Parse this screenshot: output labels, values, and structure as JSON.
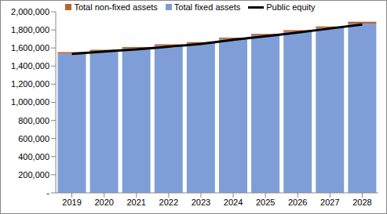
{
  "chart_data": {
    "type": "bar",
    "stacked": true,
    "legend": "top",
    "grid": false,
    "categories": [
      "2019",
      "2020",
      "2021",
      "2022",
      "2023",
      "2024",
      "2025",
      "2026",
      "2027",
      "2028"
    ],
    "series": [
      {
        "name": "Total non-fixed assets",
        "type": "bar",
        "color": "#c0622b",
        "values": [
          15000,
          15000,
          15000,
          15000,
          15000,
          15000,
          15000,
          17000,
          18000,
          20000
        ]
      },
      {
        "name": "Total fixed assets",
        "type": "bar",
        "color": "#7f9ed8",
        "values": [
          1540000,
          1565000,
          1595000,
          1625000,
          1650000,
          1700000,
          1740000,
          1780000,
          1820000,
          1870000
        ]
      },
      {
        "name": "Public equity",
        "type": "line",
        "color": "#000000",
        "values": [
          1535000,
          1560000,
          1585000,
          1615000,
          1645000,
          1690000,
          1730000,
          1770000,
          1815000,
          1860000
        ]
      }
    ],
    "ylim": [
      0,
      2000000
    ],
    "yticks": [
      {
        "value": 0,
        "label": "-"
      },
      {
        "value": 200000,
        "label": "200,000"
      },
      {
        "value": 400000,
        "label": "400,000"
      },
      {
        "value": 600000,
        "label": "600,000"
      },
      {
        "value": 800000,
        "label": "800,000"
      },
      {
        "value": 1000000,
        "label": "1,000,000"
      },
      {
        "value": 1200000,
        "label": "1,200,000"
      },
      {
        "value": 1400000,
        "label": "1,400,000"
      },
      {
        "value": 1600000,
        "label": "1,600,000"
      },
      {
        "value": 1800000,
        "label": "1,800,000"
      },
      {
        "value": 2000000,
        "label": "2,000,000"
      }
    ]
  }
}
